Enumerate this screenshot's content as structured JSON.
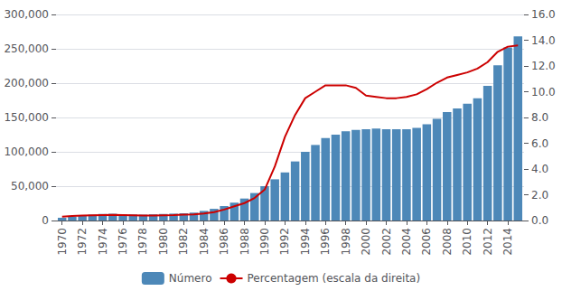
{
  "chart_data": {
    "type": "bar",
    "x": [
      1970,
      1971,
      1972,
      1973,
      1974,
      1975,
      1976,
      1977,
      1978,
      1979,
      1980,
      1981,
      1982,
      1983,
      1984,
      1985,
      1986,
      1987,
      1988,
      1989,
      1990,
      1991,
      1992,
      1993,
      1994,
      1995,
      1996,
      1997,
      1998,
      1999,
      2000,
      2001,
      2002,
      2003,
      2004,
      2005,
      2006,
      2007,
      2008,
      2009,
      2010,
      2011,
      2012,
      2013,
      2014,
      2015
    ],
    "xlim": [
      1969.4,
      2015.6
    ],
    "xticks": [
      1970,
      1972,
      1974,
      1976,
      1978,
      1980,
      1982,
      1984,
      1986,
      1988,
      1990,
      1992,
      1994,
      1996,
      1998,
      2000,
      2002,
      2004,
      2006,
      2008,
      2010,
      2012,
      2014
    ],
    "ylim": [
      0,
      300000
    ],
    "yticks": [
      0,
      {
        "value": 50000,
        "label": "50,000"
      },
      {
        "value": 100000,
        "label": "100,000"
      },
      {
        "value": 150000,
        "label": "150,000"
      },
      {
        "value": 200000,
        "label": "200,000"
      },
      {
        "value": 250000,
        "label": "250,000"
      },
      {
        "value": 300000,
        "label": "300,000"
      }
    ],
    "y2lim": [
      0,
      16.0
    ],
    "y2ticks": [
      {
        "value": 0.0,
        "label": "0.0"
      },
      {
        "value": 2.0,
        "label": "2.0"
      },
      {
        "value": 4.0,
        "label": "4.0"
      },
      {
        "value": 6.0,
        "label": "6.0"
      },
      {
        "value": 8.0,
        "label": "8.0"
      },
      {
        "value": 10.0,
        "label": "10.0"
      },
      {
        "value": 12.0,
        "label": "12.0"
      },
      {
        "value": 14.0,
        "label": "14.0"
      },
      {
        "value": 16.0,
        "label": "16.0"
      }
    ],
    "grid": true,
    "legend": "bottom",
    "series": [
      {
        "name": "Número",
        "type": "bar",
        "color": "#4d88b8",
        "values": [
          4000,
          5500,
          7000,
          8500,
          9500,
          9800,
          9200,
          8800,
          8500,
          9000,
          9500,
          10000,
          10500,
          11500,
          14000,
          17000,
          21000,
          26000,
          32000,
          40000,
          50000,
          60000,
          70000,
          86000,
          100000,
          110000,
          120000,
          125000,
          130000,
          132000,
          133000,
          134000,
          133000,
          133000,
          133000,
          135000,
          140000,
          148000,
          158000,
          163000,
          170000,
          178000,
          196000,
          226000,
          252000,
          268000
        ]
      },
      {
        "name": "Percentagem (escala da direita)",
        "type": "line",
        "axis": "y2",
        "color": "#cc0000",
        "values": [
          0.3,
          0.35,
          0.38,
          0.4,
          0.42,
          0.43,
          0.42,
          0.4,
          0.38,
          0.38,
          0.4,
          0.42,
          0.45,
          0.48,
          0.55,
          0.65,
          0.85,
          1.1,
          1.35,
          1.75,
          2.4,
          4.2,
          6.5,
          8.2,
          9.5,
          10.0,
          10.5,
          10.5,
          10.5,
          10.3,
          9.7,
          9.6,
          9.5,
          9.5,
          9.6,
          9.8,
          10.2,
          10.7,
          11.1,
          11.3,
          11.5,
          11.8,
          12.3,
          13.1,
          13.5,
          13.6
        ]
      }
    ]
  }
}
